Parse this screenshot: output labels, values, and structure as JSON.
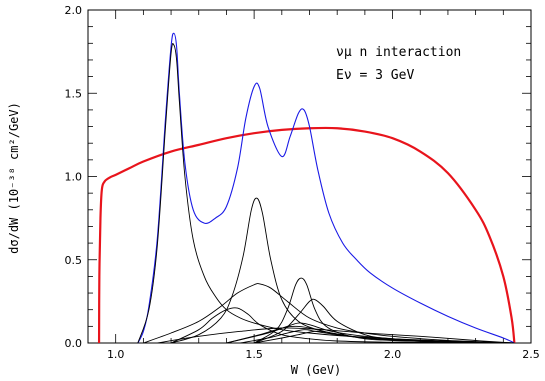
{
  "chart_data": {
    "type": "line",
    "xlabel": "W (GeV)",
    "ylabel": "dσ/dW   (10⁻³⁸ cm²/GeV)",
    "xlim": [
      0.9,
      2.5
    ],
    "ylim": [
      0.0,
      2.0
    ],
    "x_ticks": [
      1.0,
      1.5,
      2.0,
      2.5
    ],
    "x_tick_labels": [
      "1.0",
      "1.5",
      "2.0",
      "2.5"
    ],
    "y_ticks": [
      0.0,
      0.5,
      1.0,
      1.5,
      2.0
    ],
    "y_tick_labels": [
      "0.0",
      "0.5",
      "1.0",
      "1.5",
      "2.0"
    ],
    "annotations": [
      "νμ n interaction",
      "Eν = 3 GeV"
    ],
    "colors": {
      "thick_curve": "#e8141c",
      "total_curve": "#1a1ae6",
      "components": "#000000"
    },
    "series": [
      {
        "color": "#e8141c",
        "x": [
          0.94,
          0.941,
          0.945,
          0.95,
          0.96,
          0.98,
          1.0,
          1.05,
          1.1,
          1.2,
          1.3,
          1.4,
          1.5,
          1.6,
          1.7,
          1.8,
          1.9,
          2.0,
          2.1,
          2.2,
          2.3,
          2.35,
          2.4,
          2.43,
          2.44
        ],
        "y": [
          0.0,
          0.4,
          0.75,
          0.92,
          0.97,
          0.995,
          1.01,
          1.05,
          1.09,
          1.15,
          1.19,
          1.23,
          1.26,
          1.28,
          1.29,
          1.29,
          1.27,
          1.23,
          1.15,
          1.02,
          0.8,
          0.64,
          0.4,
          0.15,
          0.0
        ]
      },
      {
        "color": "#1a1ae6",
        "x": [
          1.08,
          1.1,
          1.12,
          1.15,
          1.18,
          1.2,
          1.21,
          1.22,
          1.23,
          1.25,
          1.28,
          1.32,
          1.36,
          1.4,
          1.44,
          1.47,
          1.5,
          1.52,
          1.55,
          1.6,
          1.63,
          1.66,
          1.68,
          1.7,
          1.73,
          1.77,
          1.82,
          1.87,
          1.92,
          2.0,
          2.1,
          2.2,
          2.3,
          2.4,
          2.44
        ],
        "y": [
          0.0,
          0.07,
          0.22,
          0.62,
          1.35,
          1.78,
          1.86,
          1.78,
          1.5,
          1.08,
          0.8,
          0.72,
          0.75,
          0.82,
          1.05,
          1.35,
          1.54,
          1.53,
          1.3,
          1.12,
          1.24,
          1.38,
          1.4,
          1.3,
          1.04,
          0.78,
          0.6,
          0.5,
          0.42,
          0.33,
          0.24,
          0.16,
          0.09,
          0.03,
          0.0
        ]
      },
      {
        "color": "#000000",
        "x": [
          1.08,
          1.12,
          1.15,
          1.18,
          1.2,
          1.21,
          1.22,
          1.23,
          1.25,
          1.28,
          1.32,
          1.36,
          1.4,
          1.45,
          1.5,
          1.6,
          1.7,
          1.8,
          1.9,
          2.0,
          2.2,
          2.44
        ],
        "y": [
          0.0,
          0.2,
          0.58,
          1.3,
          1.74,
          1.79,
          1.7,
          1.45,
          1.0,
          0.62,
          0.4,
          0.28,
          0.2,
          0.15,
          0.12,
          0.08,
          0.06,
          0.045,
          0.035,
          0.025,
          0.012,
          0.0
        ]
      },
      {
        "color": "#000000",
        "x": [
          1.2,
          1.3,
          1.38,
          1.42,
          1.46,
          1.49,
          1.51,
          1.53,
          1.56,
          1.6,
          1.66,
          1.75,
          1.85,
          2.0,
          2.2,
          2.44
        ],
        "y": [
          0.0,
          0.05,
          0.15,
          0.28,
          0.52,
          0.8,
          0.87,
          0.78,
          0.5,
          0.26,
          0.13,
          0.07,
          0.04,
          0.02,
          0.01,
          0.0
        ]
      },
      {
        "color": "#000000",
        "x": [
          1.1,
          1.2,
          1.3,
          1.38,
          1.44,
          1.5,
          1.52,
          1.56,
          1.62,
          1.7,
          1.8,
          1.9,
          2.0,
          2.2,
          2.44
        ],
        "y": [
          0.0,
          0.06,
          0.13,
          0.22,
          0.3,
          0.35,
          0.355,
          0.33,
          0.25,
          0.15,
          0.09,
          0.06,
          0.04,
          0.015,
          0.0
        ]
      },
      {
        "color": "#000000",
        "x": [
          1.2,
          1.3,
          1.35,
          1.4,
          1.44,
          1.48,
          1.52,
          1.6,
          1.7,
          1.8,
          2.0,
          2.44
        ],
        "y": [
          0.0,
          0.08,
          0.15,
          0.2,
          0.21,
          0.17,
          0.11,
          0.05,
          0.025,
          0.012,
          0.005,
          0.0
        ]
      },
      {
        "color": "#000000",
        "x": [
          1.5,
          1.58,
          1.62,
          1.65,
          1.67,
          1.69,
          1.72,
          1.76,
          1.85,
          2.0,
          2.44
        ],
        "y": [
          0.0,
          0.08,
          0.2,
          0.35,
          0.39,
          0.35,
          0.2,
          0.1,
          0.04,
          0.015,
          0.0
        ]
      },
      {
        "color": "#000000",
        "x": [
          1.5,
          1.6,
          1.66,
          1.7,
          1.72,
          1.75,
          1.8,
          1.9,
          2.0,
          2.2,
          2.44
        ],
        "y": [
          0.0,
          0.07,
          0.17,
          0.25,
          0.26,
          0.22,
          0.13,
          0.05,
          0.025,
          0.008,
          0.0
        ]
      },
      {
        "color": "#000000",
        "x": [
          1.4,
          1.55,
          1.62,
          1.66,
          1.7,
          1.78,
          1.9,
          2.1,
          2.44
        ],
        "y": [
          0.0,
          0.06,
          0.1,
          0.12,
          0.11,
          0.07,
          0.04,
          0.015,
          0.0
        ]
      },
      {
        "color": "#000000",
        "x": [
          1.4,
          1.52,
          1.6,
          1.65,
          1.7,
          1.78,
          1.9,
          2.1,
          2.44
        ],
        "y": [
          0.0,
          0.05,
          0.09,
          0.1,
          0.09,
          0.06,
          0.03,
          0.012,
          0.0
        ]
      },
      {
        "color": "#000000",
        "x": [
          1.45,
          1.55,
          1.62,
          1.68,
          1.72,
          1.8,
          1.9,
          2.1,
          2.44
        ],
        "y": [
          0.0,
          0.03,
          0.06,
          0.08,
          0.07,
          0.05,
          0.03,
          0.01,
          0.0
        ]
      },
      {
        "color": "#000000",
        "x": [
          1.5,
          1.6,
          1.66,
          1.72,
          1.78,
          1.85,
          1.95,
          2.1,
          2.44
        ],
        "y": [
          0.0,
          0.03,
          0.05,
          0.07,
          0.06,
          0.04,
          0.025,
          0.01,
          0.0
        ]
      },
      {
        "color": "#000000",
        "x": [
          1.15,
          1.3,
          1.45,
          1.6,
          1.75,
          1.9,
          2.1,
          2.3,
          2.44
        ],
        "y": [
          0.0,
          0.04,
          0.07,
          0.09,
          0.08,
          0.06,
          0.04,
          0.015,
          0.0
        ]
      }
    ]
  }
}
